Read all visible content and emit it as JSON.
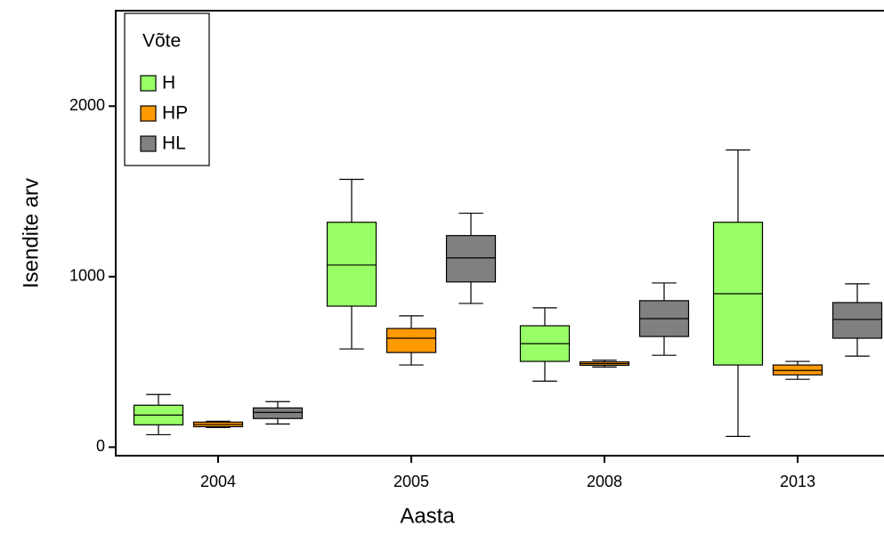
{
  "chart_data": {
    "type": "box",
    "x_label": "Aasta",
    "y_label": "Isendite arv",
    "categories": [
      "2004",
      "2005",
      "2008",
      "2013"
    ],
    "ylim": [
      -50,
      2560
    ],
    "yticks": [
      0,
      1000,
      2000
    ],
    "legend_title": "Võte",
    "legend_position": "upper left",
    "series": [
      {
        "name": "H",
        "color": "#99ff66",
        "low": [
          73,
          576,
          387,
          63
        ],
        "q1": [
          131,
          827,
          503,
          482
        ],
        "median": [
          188,
          1068,
          607,
          900
        ],
        "q3": [
          246,
          1319,
          712,
          1319
        ],
        "high": [
          309,
          1571,
          817,
          1743
        ]
      },
      {
        "name": "HP",
        "color": "#ff9900",
        "low": [
          115,
          482,
          470,
          398
        ],
        "q1": [
          120,
          555,
          480,
          424
        ],
        "median": [
          133,
          639,
          490,
          450
        ],
        "q3": [
          147,
          696,
          500,
          482
        ],
        "high": [
          152,
          770,
          510,
          503
        ]
      },
      {
        "name": "HL",
        "color": "#808080",
        "low": [
          136,
          843,
          539,
          534
        ],
        "q1": [
          168,
          969,
          649,
          639
        ],
        "median": [
          204,
          1110,
          754,
          749
        ],
        "q3": [
          230,
          1241,
          859,
          848
        ],
        "high": [
          267,
          1372,
          963,
          958
        ]
      }
    ]
  }
}
